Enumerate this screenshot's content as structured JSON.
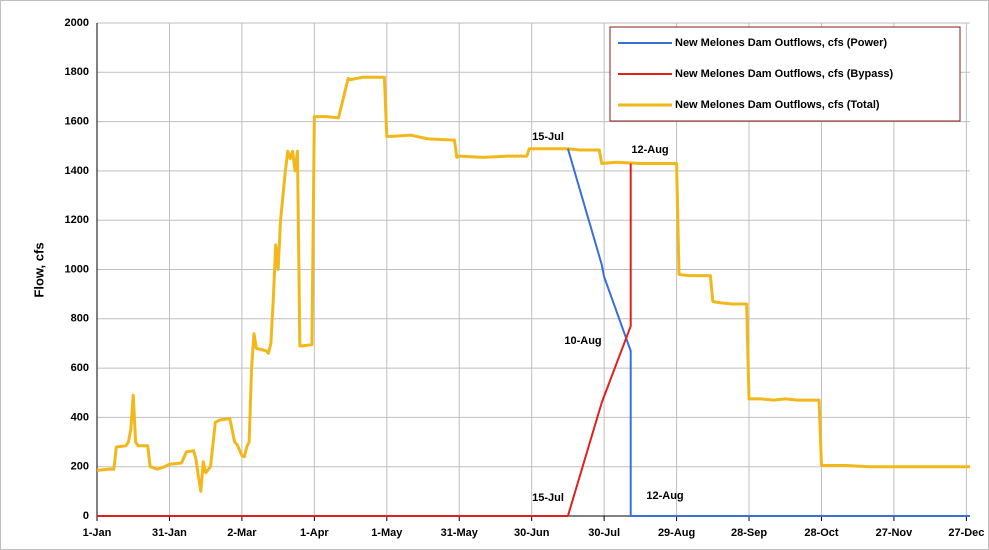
{
  "chart_data": {
    "type": "line",
    "y_label": "Flow, cfs",
    "xlim": [
      0,
      361.5
    ],
    "ylim": [
      0,
      2000
    ],
    "xticks": [
      {
        "value": 0,
        "label": "1-Jan"
      },
      {
        "value": 30,
        "label": "31-Jan"
      },
      {
        "value": 60,
        "label": "2-Mar"
      },
      {
        "value": 90,
        "label": "1-Apr"
      },
      {
        "value": 120,
        "label": "1-May"
      },
      {
        "value": 150,
        "label": "31-May"
      },
      {
        "value": 180,
        "label": "30-Jun"
      },
      {
        "value": 210,
        "label": "30-Jul"
      },
      {
        "value": 240,
        "label": "29-Aug"
      },
      {
        "value": 270,
        "label": "28-Sep"
      },
      {
        "value": 300,
        "label": "28-Oct"
      },
      {
        "value": 330,
        "label": "27-Nov"
      },
      {
        "value": 360,
        "label": "27-Dec"
      }
    ],
    "yticks": [
      0,
      200,
      400,
      600,
      800,
      1000,
      1200,
      1400,
      1600,
      1800,
      2000
    ],
    "grid": true,
    "series": [
      {
        "name": "New Melones Dam Outflows, cfs (Power)",
        "color": "#3a6fd8",
        "x": [
          195,
          209,
          210,
          221,
          221,
          361.5
        ],
        "values": [
          1490,
          1020,
          970,
          670,
          0,
          0
        ]
      },
      {
        "name": "New Melones Dam Outflows, cfs (Bypass)",
        "color": "#e0201b",
        "x": [
          0,
          195,
          209,
          221,
          221
        ],
        "values": [
          0,
          0,
          460,
          770,
          1430
        ]
      },
      {
        "name": "New Melones Dam Outflows, cfs (Total)",
        "color": "#f2b81b",
        "x": [
          0,
          5,
          7,
          8,
          12,
          13,
          14,
          15,
          16,
          17,
          21,
          22,
          25,
          28,
          30,
          35,
          37,
          40,
          41,
          42,
          43,
          44,
          45,
          47,
          48,
          49,
          51,
          55,
          57,
          58,
          60,
          61,
          62,
          63,
          64,
          65,
          66,
          70,
          71,
          72,
          73,
          74,
          75,
          76,
          77,
          78,
          79,
          80,
          81,
          82,
          83,
          84,
          85,
          89,
          90,
          95,
          100,
          104,
          105,
          110,
          119,
          120,
          122,
          130,
          137,
          148,
          149,
          150,
          160,
          170,
          178,
          179,
          185,
          195,
          200,
          208,
          209,
          215,
          225,
          240,
          241,
          245,
          250,
          254,
          255,
          258,
          263,
          269,
          270,
          275,
          280,
          285,
          290,
          299,
          300,
          310,
          320,
          330,
          340,
          350,
          361.5
        ],
        "values": [
          185,
          190,
          190,
          280,
          285,
          300,
          350,
          490,
          300,
          285,
          285,
          200,
          190,
          200,
          210,
          215,
          260,
          265,
          230,
          160,
          100,
          220,
          175,
          200,
          290,
          380,
          390,
          395,
          300,
          290,
          245,
          240,
          280,
          300,
          600,
          740,
          680,
          670,
          660,
          700,
          880,
          1100,
          1000,
          1200,
          1300,
          1400,
          1480,
          1450,
          1480,
          1400,
          1480,
          690,
          690,
          695,
          1620,
          1620,
          1615,
          1775,
          1770,
          1780,
          1780,
          1540,
          1540,
          1545,
          1530,
          1525,
          1455,
          1460,
          1455,
          1460,
          1460,
          1490,
          1490,
          1490,
          1485,
          1485,
          1430,
          1435,
          1430,
          1430,
          980,
          975,
          975,
          975,
          870,
          865,
          860,
          860,
          475,
          475,
          470,
          475,
          470,
          470,
          205,
          205,
          200,
          200,
          200,
          200,
          200
        ]
      }
    ],
    "legend": "top-right",
    "annotations": [
      "15-Jul",
      "12-Aug",
      "10-Aug",
      "15-Jul",
      "12-Aug"
    ]
  }
}
